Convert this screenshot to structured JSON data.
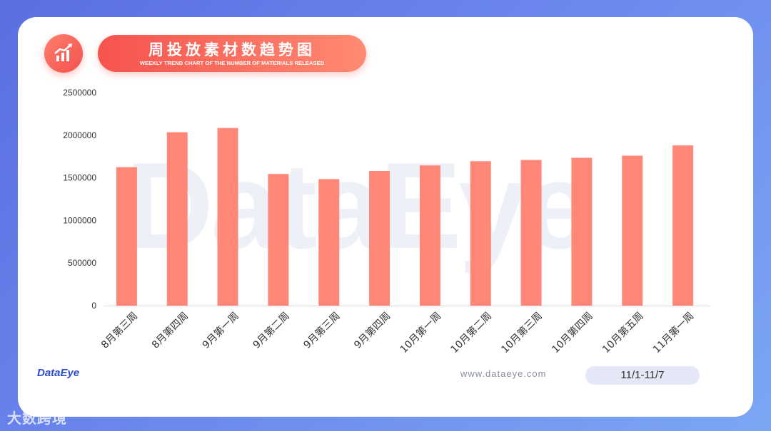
{
  "header": {
    "title": "周投放素材数趋势图",
    "subtitle": "WEEKLY TREND CHART OF THE NUMBER OF MATERIALS RELEASED"
  },
  "watermark": "DataEye",
  "footer": {
    "logo": "DataEye",
    "website": "www.dataeye.com",
    "date_range": "11/1-11/7",
    "corner_mark": "大数跨境"
  },
  "colors": {
    "bar": "#ff8778",
    "accent": "#f6534e",
    "axis_text": "#333333"
  },
  "icons": {
    "title_icon": "bar-chart-trend-icon"
  },
  "chart_data": {
    "type": "bar",
    "categories": [
      "8月第三周",
      "8月第四周",
      "9月第一周",
      "9月第二周",
      "9月第三周",
      "9月第四周",
      "10月第一周",
      "10月第二周",
      "10月第三周",
      "10月第四周",
      "10月第五周",
      "11月第一周"
    ],
    "values": [
      1625000,
      2035000,
      2085000,
      1545000,
      1485000,
      1580000,
      1645000,
      1695000,
      1710000,
      1735000,
      1760000,
      1880000
    ],
    "yticks": [
      0,
      500000,
      1000000,
      1500000,
      2000000,
      2500000
    ],
    "ylim": [
      0,
      2500000
    ],
    "grid": false,
    "legend": "none"
  }
}
